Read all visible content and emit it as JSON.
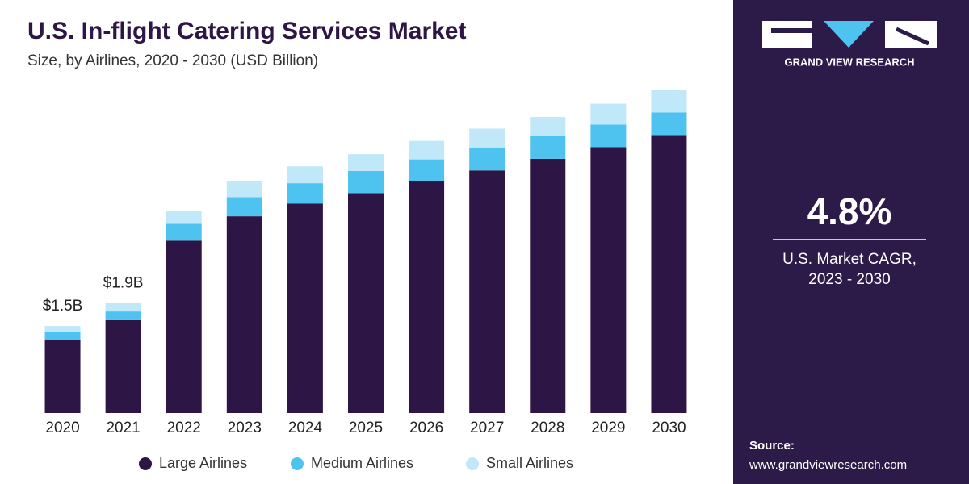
{
  "chart_data": {
    "type": "stacked_bar",
    "title": "U.S. In-flight Catering Services Market",
    "subtitle": "Size, by Airlines, 2020 - 2030 (USD Billion)",
    "categories": [
      "2020",
      "2021",
      "2022",
      "2023",
      "2024",
      "2025",
      "2026",
      "2027",
      "2028",
      "2029",
      "2030"
    ],
    "series": [
      {
        "name": "Large Airlines",
        "color": "#2d1546",
        "values": [
          1.26,
          1.6,
          2.97,
          3.39,
          3.61,
          3.79,
          3.99,
          4.18,
          4.38,
          4.58,
          4.79
        ]
      },
      {
        "name": "Medium Airlines",
        "color": "#4fc3f0",
        "values": [
          0.14,
          0.15,
          0.29,
          0.33,
          0.35,
          0.38,
          0.38,
          0.39,
          0.39,
          0.39,
          0.39
        ]
      },
      {
        "name": "Small Airlines",
        "color": "#c0e8f8",
        "values": [
          0.1,
          0.15,
          0.22,
          0.28,
          0.29,
          0.29,
          0.32,
          0.33,
          0.33,
          0.36,
          0.38
        ]
      }
    ],
    "total_labels": [
      {
        "value": 1.5,
        "label": "$1.5B"
      },
      {
        "value": 1.9,
        "label": "$1.9B"
      }
    ],
    "legend": "bottom"
  },
  "sidebar": {
    "brand": "GRAND VIEW RESEARCH",
    "cagr": "4.8%",
    "cagr_caption": [
      "U.S. Market CAGR,",
      "2023  - 2030"
    ],
    "source_label": "Source:",
    "source_url": "www.grandviewresearch.com"
  }
}
